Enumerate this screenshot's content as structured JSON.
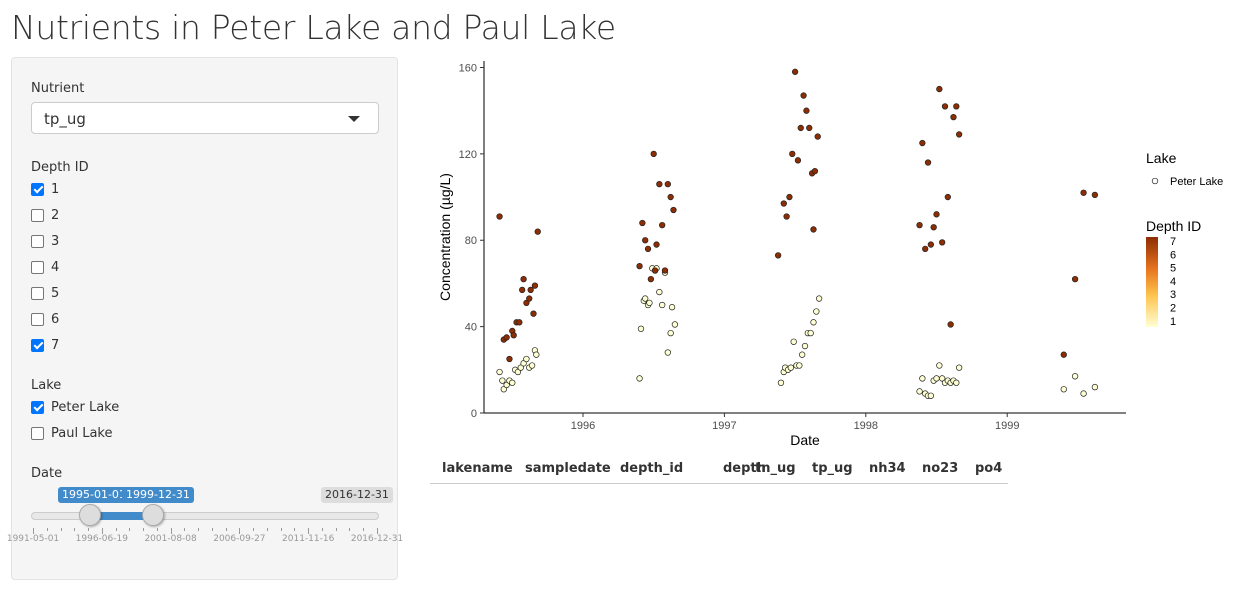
{
  "page": {
    "title": "Nutrients in Peter Lake and Paul Lake"
  },
  "sidebar": {
    "nutrient": {
      "label": "Nutrient",
      "value": "tp_ug"
    },
    "depth": {
      "label": "Depth ID",
      "options": [
        {
          "label": "1",
          "checked": true
        },
        {
          "label": "2",
          "checked": false
        },
        {
          "label": "3",
          "checked": false
        },
        {
          "label": "4",
          "checked": false
        },
        {
          "label": "5",
          "checked": false
        },
        {
          "label": "6",
          "checked": false
        },
        {
          "label": "7",
          "checked": true
        }
      ]
    },
    "lake": {
      "label": "Lake",
      "options": [
        {
          "label": "Peter Lake",
          "checked": true
        },
        {
          "label": "Paul Lake",
          "checked": false
        }
      ]
    },
    "date": {
      "label": "Date",
      "from": "1995-01-01",
      "to": "1999-12-31",
      "max": "2016-12-31",
      "min": "1991-05-01",
      "tick_labels": [
        "1991-05-01",
        "1996-06-19",
        "2001-08-08",
        "2006-09-27",
        "2011-11-16",
        "2016-12-31"
      ]
    }
  },
  "table": {
    "columns": [
      "lakename",
      "sampledate",
      "depth_id",
      "depth",
      "tn_ug",
      "tp_ug",
      "nh34",
      "no23",
      "po4"
    ]
  },
  "chart_data": {
    "type": "scatter",
    "xlabel": "Date",
    "ylabel": "Concentration (µg/L)",
    "x_ticks": [
      "1996",
      "1997",
      "1998",
      "1999"
    ],
    "y_ticks": [
      0,
      40,
      80,
      120,
      160
    ],
    "xlim": [
      1995.3,
      1999.84
    ],
    "ylim": [
      0,
      163
    ],
    "grid": false,
    "legend": {
      "position": "right",
      "shape_title": "Lake",
      "shape_entry": "Peter Lake",
      "color_title": "Depth ID",
      "color_labels": [
        "7",
        "6",
        "5",
        "4",
        "3",
        "2",
        "1"
      ]
    },
    "colors": {
      "depth_1": "#ffffd4",
      "depth_7": "#8c2d04"
    },
    "series": [
      {
        "name": "1",
        "points": [
          [
            1995.41,
            19
          ],
          [
            1995.43,
            15
          ],
          [
            1995.44,
            11
          ],
          [
            1995.46,
            13
          ],
          [
            1995.48,
            15
          ],
          [
            1995.5,
            14
          ],
          [
            1995.52,
            20
          ],
          [
            1995.54,
            19
          ],
          [
            1995.56,
            21
          ],
          [
            1995.58,
            23
          ],
          [
            1995.6,
            25
          ],
          [
            1995.62,
            21
          ],
          [
            1995.64,
            22
          ],
          [
            1995.66,
            29
          ],
          [
            1995.67,
            27
          ],
          [
            1996.4,
            16
          ],
          [
            1996.41,
            39
          ],
          [
            1996.43,
            52
          ],
          [
            1996.44,
            53
          ],
          [
            1996.46,
            50
          ],
          [
            1996.47,
            51
          ],
          [
            1996.49,
            67
          ],
          [
            1996.51,
            66
          ],
          [
            1996.52,
            67
          ],
          [
            1996.54,
            56
          ],
          [
            1996.56,
            50
          ],
          [
            1996.58,
            65
          ],
          [
            1996.6,
            28
          ],
          [
            1996.62,
            37
          ],
          [
            1996.63,
            49
          ],
          [
            1996.65,
            41
          ],
          [
            1997.4,
            14
          ],
          [
            1997.42,
            19
          ],
          [
            1997.43,
            21
          ],
          [
            1997.45,
            20
          ],
          [
            1997.47,
            21
          ],
          [
            1997.49,
            33
          ],
          [
            1997.51,
            22
          ],
          [
            1997.53,
            22
          ],
          [
            1997.55,
            27
          ],
          [
            1997.57,
            31
          ],
          [
            1997.59,
            37
          ],
          [
            1997.61,
            37
          ],
          [
            1997.63,
            42
          ],
          [
            1997.65,
            47
          ],
          [
            1997.67,
            53
          ],
          [
            1998.38,
            10
          ],
          [
            1998.4,
            16
          ],
          [
            1998.42,
            9
          ],
          [
            1998.44,
            8
          ],
          [
            1998.46,
            8
          ],
          [
            1998.48,
            15
          ],
          [
            1998.5,
            16
          ],
          [
            1998.52,
            22
          ],
          [
            1998.54,
            16
          ],
          [
            1998.56,
            14
          ],
          [
            1998.58,
            15
          ],
          [
            1998.6,
            14
          ],
          [
            1998.62,
            15
          ],
          [
            1998.64,
            14
          ],
          [
            1998.66,
            21
          ],
          [
            1999.4,
            11
          ],
          [
            1999.48,
            17
          ],
          [
            1999.54,
            9
          ],
          [
            1999.62,
            12
          ]
        ]
      },
      {
        "name": "7",
        "points": [
          [
            1995.41,
            91
          ],
          [
            1995.44,
            34
          ],
          [
            1995.46,
            35
          ],
          [
            1995.48,
            25
          ],
          [
            1995.5,
            38
          ],
          [
            1995.51,
            36
          ],
          [
            1995.53,
            42
          ],
          [
            1995.55,
            42
          ],
          [
            1995.57,
            57
          ],
          [
            1995.58,
            62
          ],
          [
            1995.6,
            51
          ],
          [
            1995.62,
            53
          ],
          [
            1995.63,
            57
          ],
          [
            1995.65,
            46
          ],
          [
            1995.66,
            59
          ],
          [
            1995.68,
            84
          ],
          [
            1996.4,
            68
          ],
          [
            1996.42,
            88
          ],
          [
            1996.44,
            80
          ],
          [
            1996.46,
            76
          ],
          [
            1996.48,
            62
          ],
          [
            1996.5,
            120
          ],
          [
            1996.51,
            66
          ],
          [
            1996.52,
            78
          ],
          [
            1996.54,
            106
          ],
          [
            1996.56,
            87
          ],
          [
            1996.58,
            66
          ],
          [
            1996.6,
            106
          ],
          [
            1996.62,
            100
          ],
          [
            1996.64,
            94
          ],
          [
            1997.38,
            73
          ],
          [
            1997.42,
            97
          ],
          [
            1997.44,
            91
          ],
          [
            1997.46,
            100
          ],
          [
            1997.48,
            120
          ],
          [
            1997.5,
            158
          ],
          [
            1997.52,
            117
          ],
          [
            1997.54,
            132
          ],
          [
            1997.56,
            147
          ],
          [
            1997.58,
            140
          ],
          [
            1997.6,
            132
          ],
          [
            1997.62,
            111
          ],
          [
            1997.64,
            112
          ],
          [
            1997.66,
            128
          ],
          [
            1997.63,
            85
          ]
        ]
      },
      {
        "name": "7-cont",
        "points": [
          [
            1998.38,
            87
          ],
          [
            1998.4,
            125
          ],
          [
            1998.42,
            76
          ],
          [
            1998.44,
            116
          ],
          [
            1998.46,
            78
          ],
          [
            1998.48,
            86
          ],
          [
            1998.5,
            92
          ],
          [
            1998.52,
            150
          ],
          [
            1998.54,
            79
          ],
          [
            1998.56,
            142
          ],
          [
            1998.58,
            100
          ],
          [
            1998.6,
            41
          ],
          [
            1998.62,
            137
          ],
          [
            1998.64,
            142
          ],
          [
            1998.66,
            129
          ],
          [
            1999.4,
            27
          ],
          [
            1999.48,
            62
          ],
          [
            1999.54,
            102
          ],
          [
            1999.62,
            101
          ]
        ]
      }
    ]
  }
}
